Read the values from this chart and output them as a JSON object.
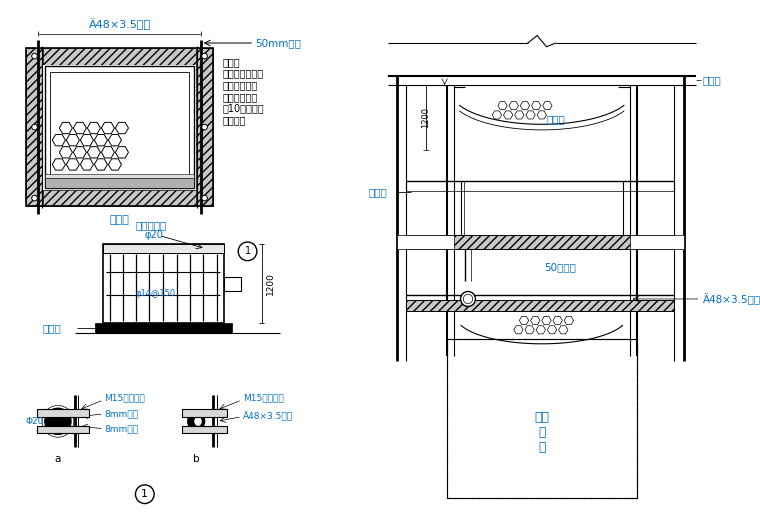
{
  "bg_color": "#ffffff",
  "line_color": "#000000",
  "blue_color": "#0070C0",
  "note_text": "说明：\n在墙上预留孔，\n穿脚手架管；\n每二层（不大\n于10米）设一\n道安全网",
  "label_pipe_top": "Ä48×3.5钉管",
  "label_50mm": "50mm间隙",
  "label_fhm": "防护门",
  "label_gjtkm": "钙筋铁栅门",
  "label_d20_small": "φ20",
  "label_d14": "φ14@150",
  "label_tjb": "踢脚板",
  "label_1200": "1200",
  "label_M15a": "M15膨胀赣栖",
  "label_M15b": "M15膨胀赣栖",
  "label_8mm1": "8mm鑉板",
  "label_8mm2": "8mm鑉板",
  "label_phi20": "Φ20",
  "label_pipe_b": "Ä48×3.5鑉管",
  "label_a": "a",
  "label_b": "b",
  "label_shigong": "施工层",
  "label_anquan": "安全网",
  "label_fhm2": "防护门",
  "label_50hou": "50厚木板",
  "label_pipe_r": "Ä48×3.5鑉管",
  "label_dianti": "电梯\n井\n坑"
}
